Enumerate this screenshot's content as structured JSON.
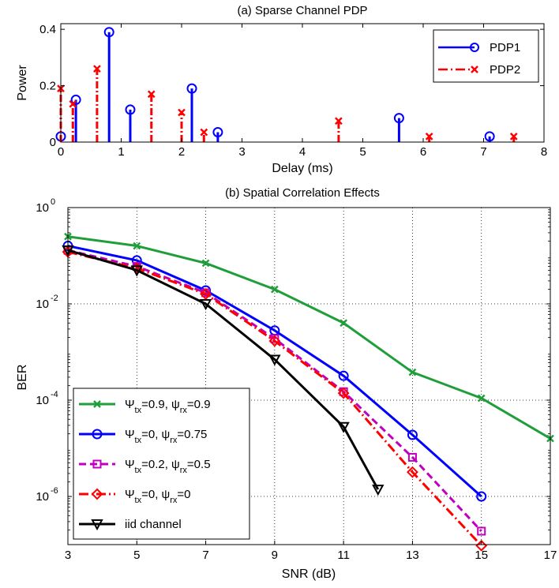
{
  "chart_data": [
    {
      "type": "stem",
      "title": "(a) Sparse Channel PDP",
      "xlabel": "Delay (ms)",
      "ylabel": "Power",
      "xlim": [
        0,
        8
      ],
      "ylim": [
        0,
        0.42
      ],
      "xticks": [
        "0",
        "1",
        "2",
        "3",
        "4",
        "5",
        "6",
        "7",
        "8"
      ],
      "yticks": [
        "0",
        "0.2",
        "0.4"
      ],
      "legend_position": "top-right",
      "series": [
        {
          "name": "PDP1",
          "color": "#0000ff",
          "marker": "circle",
          "line": "solid",
          "x": [
            0.0,
            0.25,
            0.8,
            1.15,
            2.17,
            2.6,
            5.6,
            7.1
          ],
          "y": [
            0.02,
            0.15,
            0.39,
            0.115,
            0.19,
            0.035,
            0.085,
            0.02
          ]
        },
        {
          "name": "PDP2",
          "color": "#ff0000",
          "marker": "x",
          "line": "dashdot",
          "x": [
            0.0,
            0.2,
            0.6,
            1.5,
            2.0,
            2.37,
            4.6,
            6.1,
            7.5
          ],
          "y": [
            0.19,
            0.135,
            0.26,
            0.17,
            0.105,
            0.035,
            0.075,
            0.02,
            0.02
          ]
        }
      ]
    },
    {
      "type": "line",
      "title": "(b) Spatial Correlation Effects",
      "xlabel": "SNR (dB)",
      "ylabel": "BER",
      "xlim": [
        3,
        17
      ],
      "ylim": [
        1e-07,
        1
      ],
      "yscale": "log",
      "xticks": [
        "3",
        "5",
        "7",
        "9",
        "11",
        "13",
        "15",
        "17"
      ],
      "yticks": [
        {
          "base": "10",
          "exp": "0",
          "value": 1
        },
        {
          "base": "10",
          "exp": "-2",
          "value": 0.01
        },
        {
          "base": "10",
          "exp": "-4",
          "value": 0.0001
        },
        {
          "base": "10",
          "exp": "-6",
          "value": 1e-06
        }
      ],
      "grid": true,
      "legend_position": "bottom-left",
      "series": [
        {
          "legend": {
            "a": "Ψ",
            "asub": "tx",
            "b": "=0.9, ψ",
            "bsub": "rx",
            "c": "=0.9"
          },
          "color": "#1f9e3a",
          "marker": "x",
          "line": "solid",
          "x": [
            3,
            5,
            7,
            9,
            11,
            13,
            15,
            17
          ],
          "y": [
            0.25,
            0.16,
            0.07,
            0.02,
            0.004,
            0.00038,
            0.00011,
            1.6e-05
          ]
        },
        {
          "legend": {
            "a": "Ψ",
            "asub": "tx",
            "b": "=0, ψ",
            "bsub": "rx",
            "c": "=0.75"
          },
          "color": "#0000ff",
          "marker": "circle",
          "line": "solid",
          "x": [
            3,
            5,
            7,
            9,
            11,
            13,
            15
          ],
          "y": [
            0.16,
            0.08,
            0.019,
            0.0028,
            0.00032,
            1.9e-05,
            1e-06
          ]
        },
        {
          "legend": {
            "a": "Ψ",
            "asub": "tx",
            "b": "=0.2, ψ",
            "bsub": "rx",
            "c": "=0.5"
          },
          "color": "#c000c0",
          "marker": "square",
          "line": "dashed",
          "x": [
            3,
            5,
            7,
            9,
            11,
            13,
            15
          ],
          "y": [
            0.13,
            0.06,
            0.017,
            0.0019,
            0.00015,
            6.5e-06,
            1.9e-07
          ]
        },
        {
          "legend": {
            "a": "Ψ",
            "asub": "tx",
            "b": "=0, ψ",
            "bsub": "rx",
            "c": "=0"
          },
          "color": "#ff0000",
          "marker": "diamond",
          "line": "dashdot",
          "x": [
            3,
            5,
            7,
            9,
            11,
            13,
            15
          ],
          "y": [
            0.12,
            0.055,
            0.016,
            0.0017,
            0.00014,
            3.2e-06,
            9.5e-08
          ]
        },
        {
          "legend": {
            "a": "iid channel",
            "asub": "",
            "b": "",
            "bsub": "",
            "c": ""
          },
          "color": "#000000",
          "marker": "triangle-down",
          "line": "solid",
          "x": [
            3,
            5,
            7,
            9,
            11,
            12
          ],
          "y": [
            0.13,
            0.05,
            0.01,
            0.0007,
            2.8e-05,
            1.4e-06
          ]
        }
      ]
    }
  ]
}
